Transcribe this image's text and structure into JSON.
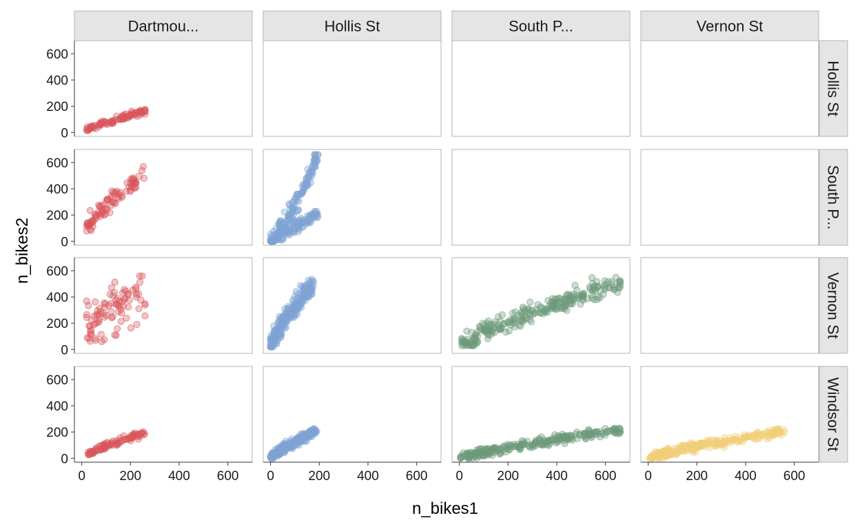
{
  "chart_data": {
    "type": "scatter",
    "xlabel": "n_bikes1",
    "ylabel": "n_bikes2",
    "xlim": [
      -30,
      700
    ],
    "ylim": [
      -30,
      700
    ],
    "x_ticks": [
      0,
      200,
      400,
      600
    ],
    "y_ticks": [
      0,
      200,
      400,
      600
    ],
    "column_strips": [
      "Dartmou...",
      "Hollis St",
      "South P...",
      "Vernon St"
    ],
    "row_strips": [
      "Hollis St",
      "South P...",
      "Vernon St",
      "Windsor St"
    ],
    "series_colors": {
      "Dartmou...": "#d9565c",
      "Hollis St": "#7ea4d4",
      "South P...": "#6e9a7c",
      "Vernon St": "#f2cf78"
    },
    "panels": [
      {
        "row": 0,
        "col": 0,
        "series": "Dartmou...",
        "x_range": [
          20,
          260
        ],
        "y_range": [
          15,
          175
        ],
        "n": 90,
        "shape": "band"
      },
      {
        "row": 1,
        "col": 0,
        "series": "Dartmou...",
        "x_range": [
          20,
          260
        ],
        "y_range": [
          80,
          570
        ],
        "n": 90,
        "shape": "band"
      },
      {
        "row": 1,
        "col": 1,
        "series": "Hollis St",
        "x_range": [
          0,
          195
        ],
        "y_range": [
          0,
          660
        ],
        "n": 260,
        "shape": "dual"
      },
      {
        "row": 2,
        "col": 0,
        "series": "Dartmou...",
        "x_range": [
          20,
          260
        ],
        "y_range": [
          60,
          560
        ],
        "n": 90,
        "shape": "spread"
      },
      {
        "row": 2,
        "col": 1,
        "series": "Hollis St",
        "x_range": [
          0,
          175
        ],
        "y_range": [
          20,
          550
        ],
        "n": 240,
        "shape": "band"
      },
      {
        "row": 2,
        "col": 2,
        "series": "South P...",
        "x_range": [
          10,
          660
        ],
        "y_range": [
          30,
          550
        ],
        "n": 260,
        "shape": "band"
      },
      {
        "row": 3,
        "col": 0,
        "series": "Dartmou...",
        "x_range": [
          20,
          260
        ],
        "y_range": [
          25,
          210
        ],
        "n": 90,
        "shape": "band"
      },
      {
        "row": 3,
        "col": 1,
        "series": "Hollis St",
        "x_range": [
          0,
          190
        ],
        "y_range": [
          0,
          225
        ],
        "n": 240,
        "shape": "band"
      },
      {
        "row": 3,
        "col": 2,
        "series": "South P...",
        "x_range": [
          5,
          660
        ],
        "y_range": [
          0,
          230
        ],
        "n": 260,
        "shape": "band"
      },
      {
        "row": 3,
        "col": 3,
        "series": "Vernon St",
        "x_range": [
          5,
          560
        ],
        "y_range": [
          0,
          225
        ],
        "n": 260,
        "shape": "band"
      }
    ]
  }
}
